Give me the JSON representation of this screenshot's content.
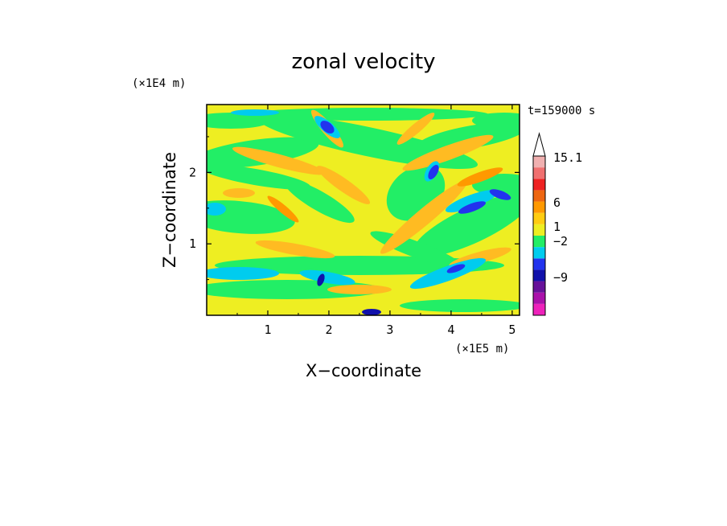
{
  "chart_data": {
    "type": "heatmap",
    "title": "zonal velocity",
    "xlabel": "X−coordinate",
    "ylabel": "Z−coordinate",
    "x_scale_label": "(×1E5 m)",
    "y_scale_label": "(×1E4 m)",
    "time_label": "t=159000 s",
    "xlim": [
      0,
      5.12
    ],
    "ylim": [
      0,
      2.95
    ],
    "x_ticks": [
      1,
      2,
      3,
      4,
      5
    ],
    "x_tick_labels": [
      "1",
      "2",
      "3",
      "4",
      "5"
    ],
    "y_ticks": [
      1,
      2
    ],
    "y_tick_labels": [
      "1",
      "2"
    ],
    "colorbar": {
      "levels": [
        {
          "color": "#ee22bb"
        },
        {
          "color": "#aa11aa"
        },
        {
          "color": "#661199"
        },
        {
          "color": "#1111aa"
        },
        {
          "color": "#2233ee"
        },
        {
          "color": "#00ccee"
        },
        {
          "color": "#22ee66"
        },
        {
          "color": "#eeee22"
        },
        {
          "color": "#ffcc11"
        },
        {
          "color": "#ff9900"
        },
        {
          "color": "#ee6611"
        },
        {
          "color": "#ee2222"
        },
        {
          "color": "#f07070"
        },
        {
          "color": "#f0b0b0"
        }
      ],
      "overflow_color": "#ffffff",
      "labels": [
        {
          "text": "15.1",
          "value": 15.1
        },
        {
          "text": "6",
          "value": 6
        },
        {
          "text": "1",
          "value": 1
        },
        {
          "text": "−2",
          "value": -2
        },
        {
          "text": "−9",
          "value": -9
        }
      ]
    },
    "palette": {
      "background": "#eeee22",
      "yellow": "#eeee22",
      "green": "#22ee66",
      "cyan": "#00ccee",
      "blue": "#2233ee",
      "navy": "#1111aa",
      "orange": "#ffbb22",
      "dark_orange": "#ff9900"
    }
  }
}
